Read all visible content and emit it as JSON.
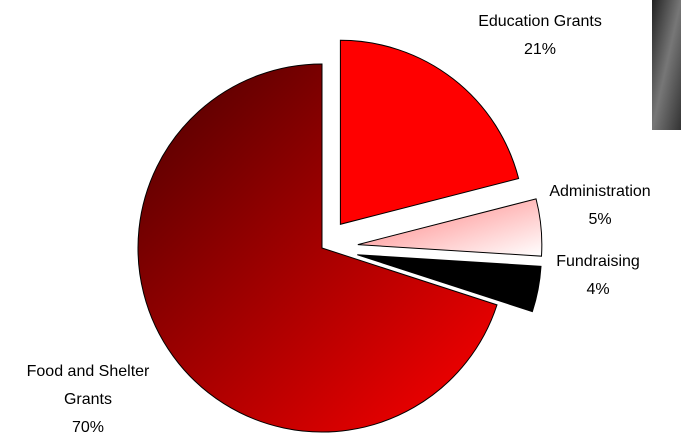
{
  "chart_data": {
    "type": "pie",
    "categories": [
      "Education Grants",
      "Administration",
      "Fundraising",
      "Food and Shelter Grants"
    ],
    "values": [
      21,
      5,
      4,
      70
    ],
    "value_labels": [
      "21%",
      "5%",
      "4%",
      "70%"
    ],
    "colors": [
      "#ff0000",
      "#ff7a7a",
      "#000000",
      "#b30000"
    ]
  }
}
